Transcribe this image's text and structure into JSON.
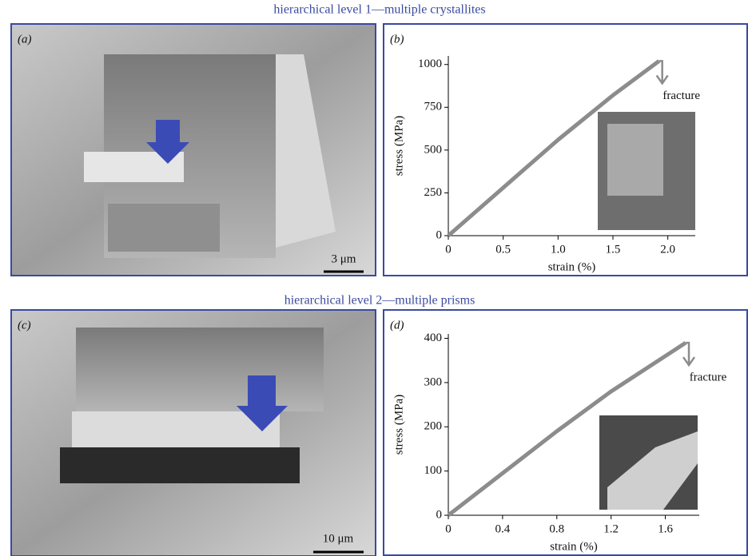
{
  "headers": [
    "hierarchical level 1—multiple crystallites",
    "hierarchical level 2—multiple prisms"
  ],
  "images": [
    {
      "label": "(a)",
      "scale_bar": "3 μm"
    },
    {
      "label": "(c)",
      "scale_bar": "10 μm"
    }
  ],
  "chart_data": [
    {
      "type": "line",
      "label": "(b)",
      "xlabel": "strain (%)",
      "ylabel": "stress (MPa)",
      "annotation": "fracture",
      "x": [
        0,
        0.5,
        1.0,
        1.5,
        1.92
      ],
      "series": [
        {
          "name": "stress",
          "color": "#8c8c8c",
          "values": [
            0,
            280,
            560,
            820,
            1020
          ]
        }
      ],
      "xlim": [
        0,
        2.25
      ],
      "ylim": [
        0,
        1050
      ],
      "xticks": [
        0,
        0.5,
        {
          "value": 1,
          "label": "1.0"
        },
        1.5,
        {
          "value": 2,
          "label": "2.0"
        }
      ],
      "yticks": [
        0,
        250,
        500,
        750,
        1000
      ]
    },
    {
      "type": "line",
      "label": "(d)",
      "xlabel": "strain (%)",
      "ylabel": "stress (MPa)",
      "annotation": "fracture",
      "x": [
        0,
        0.4,
        0.8,
        1.2,
        1.6,
        1.75
      ],
      "series": [
        {
          "name": "stress",
          "color": "#8c8c8c",
          "values": [
            0,
            95,
            190,
            280,
            360,
            390
          ]
        }
      ],
      "xlim": [
        0,
        1.85
      ],
      "ylim": [
        0,
        410
      ],
      "xticks": [
        0,
        0.4,
        0.8,
        1.2,
        1.6
      ],
      "yticks": [
        0,
        100,
        200,
        300,
        400
      ]
    }
  ]
}
